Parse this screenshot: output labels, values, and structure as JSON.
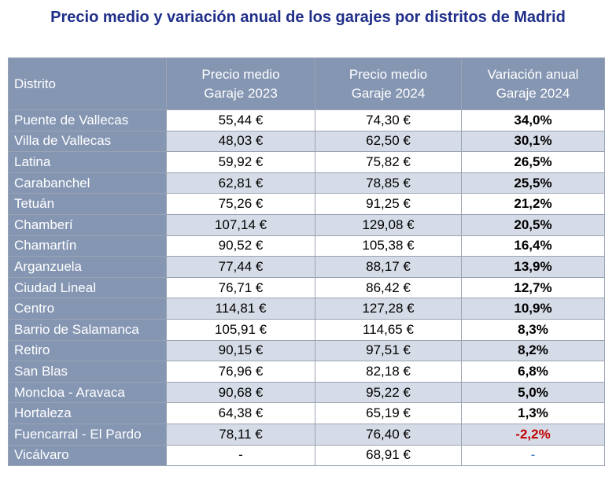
{
  "title": "Precio medio y variación anual de los garajes por distritos de Madrid",
  "columns": {
    "distrito": "Distrito",
    "precio_2023_line1": "Precio medio",
    "precio_2023_line2": "Garaje 2023",
    "precio_2024_line1": "Precio medio",
    "precio_2024_line2": "Garaje 2024",
    "variacion_line1": "Variación anual",
    "variacion_line2": "Garaje 2024"
  },
  "colors": {
    "header_bg": "#8596b3",
    "title": "#1f2f8a",
    "stripe": "#d6dce7",
    "negative": "#c00000",
    "dash": "#2e75b6"
  },
  "chart_data": {
    "type": "table",
    "title": "Precio medio y variación anual de los garajes por distritos de Madrid",
    "headers": [
      "Distrito",
      "Precio medio Garaje 2023",
      "Precio medio Garaje 2024",
      "Variación anual Garaje 2024"
    ],
    "rows": [
      [
        "Puente de Vallecas",
        "55,44 €",
        "74,30 €",
        "34,0%"
      ],
      [
        "Villa de Vallecas",
        "48,03 €",
        "62,50 €",
        "30,1%"
      ],
      [
        "Latina",
        "59,92 €",
        "75,82 €",
        "26,5%"
      ],
      [
        "Carabanchel",
        "62,81 €",
        "78,85 €",
        "25,5%"
      ],
      [
        "Tetuán",
        "75,26 €",
        "91,25 €",
        "21,2%"
      ],
      [
        "Chamberí",
        "107,14 €",
        "129,08 €",
        "20,5%"
      ],
      [
        "Chamartín",
        "90,52 €",
        "105,38 €",
        "16,4%"
      ],
      [
        "Arganzuela",
        "77,44 €",
        "88,17 €",
        "13,9%"
      ],
      [
        "Ciudad Lineal",
        "76,71 €",
        "86,42 €",
        "12,7%"
      ],
      [
        "Centro",
        "114,81 €",
        "127,28 €",
        "10,9%"
      ],
      [
        "Barrio de Salamanca",
        "105,91 €",
        "114,65 €",
        "8,3%"
      ],
      [
        "Retiro",
        "90,15 €",
        "97,51 €",
        "8,2%"
      ],
      [
        "San Blas",
        "76,96 €",
        "82,18 €",
        "6,8%"
      ],
      [
        "Moncloa - Aravaca",
        "90,68 €",
        "95,22 €",
        "5,0%"
      ],
      [
        "Hortaleza",
        "64,38 €",
        "65,19 €",
        "1,3%"
      ],
      [
        "Fuencarral - El Pardo",
        "78,11 €",
        "76,40 €",
        "-2,2%"
      ],
      [
        "Vicálvaro",
        "-",
        "68,91 €",
        "-"
      ]
    ]
  }
}
